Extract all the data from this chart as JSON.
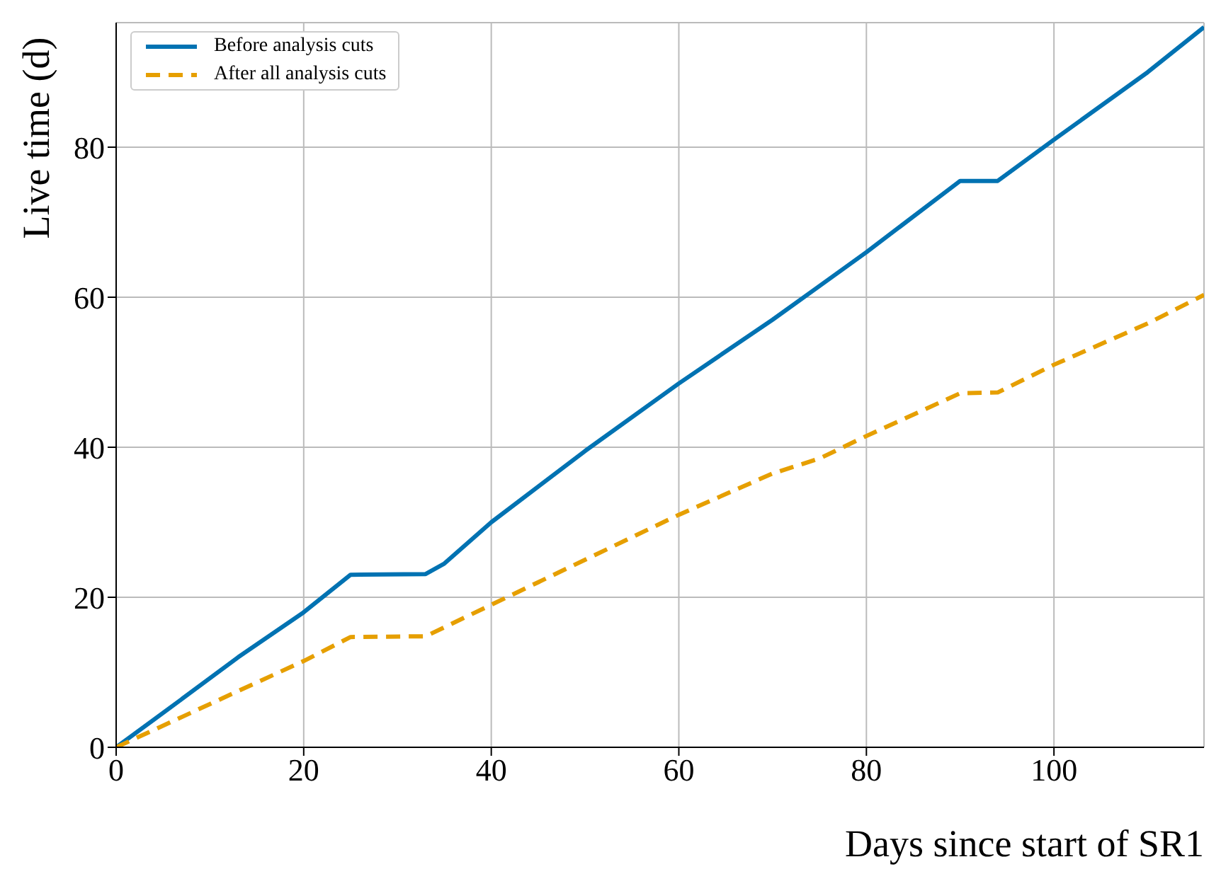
{
  "chart_data": {
    "type": "line",
    "xlabel": "Days since start of SR1",
    "ylabel": "Live time (d)",
    "xlim": [
      0,
      116
    ],
    "xticks": [
      0,
      20,
      40,
      60,
      80,
      100
    ],
    "ylim": [
      0,
      96.6
    ],
    "yticks": [
      0,
      20,
      40,
      60,
      80
    ],
    "grid": true,
    "legend": "top left",
    "marker": "none",
    "series": [
      {
        "name": "Before analysis cuts",
        "color": "#0072b2",
        "line_style": "solid",
        "x": [
          0,
          6,
          13,
          20,
          25,
          33,
          35,
          40,
          50,
          60,
          70,
          75,
          80,
          90,
          94,
          100,
          110,
          116
        ],
        "values": [
          0,
          5.5,
          12,
          18,
          23,
          23.1,
          24.5,
          30,
          39.5,
          48.5,
          57,
          61.5,
          66,
          75.5,
          75.5,
          81,
          90,
          96
        ]
      },
      {
        "name": "After all analysis cuts",
        "color": "#e69f00",
        "line_style": "dashed",
        "x": [
          0,
          13,
          20,
          25,
          33,
          35,
          40,
          50,
          60,
          70,
          75,
          80,
          90,
          94,
          100,
          110,
          116
        ],
        "values": [
          0,
          7.5,
          11.5,
          14.7,
          14.8,
          16,
          19,
          25,
          31,
          36.5,
          38.5,
          41.5,
          47.2,
          47.3,
          51,
          56.5,
          60.3
        ]
      }
    ]
  }
}
